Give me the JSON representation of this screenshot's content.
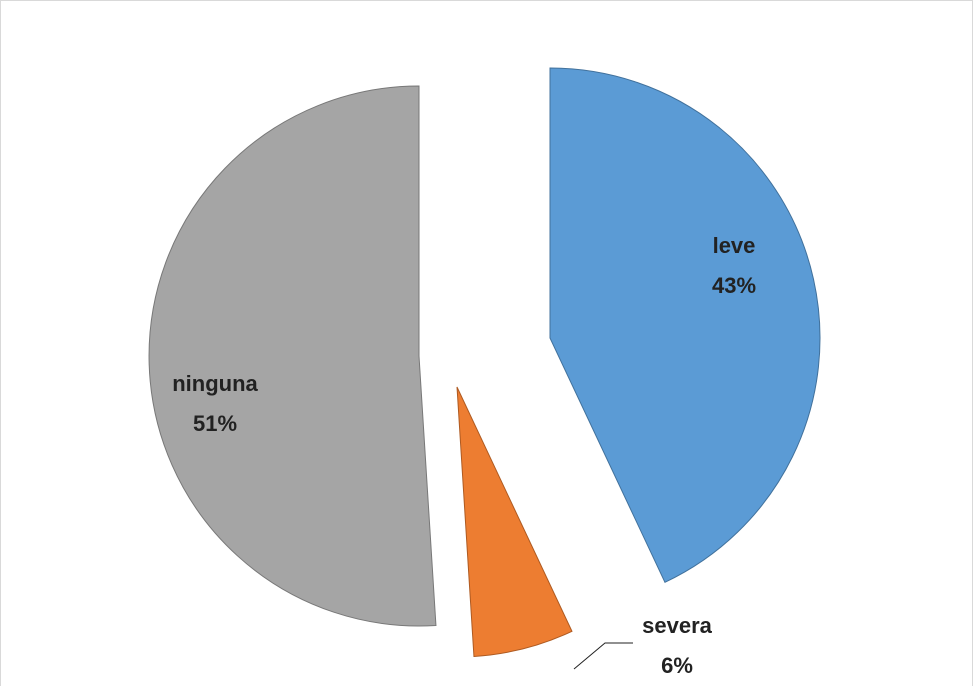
{
  "chart_data": {
    "type": "pie",
    "title": "",
    "exploded": true,
    "legend": "none",
    "slices": [
      {
        "name": "leve",
        "value": 43,
        "label": "43%",
        "color": "#5b9bd5",
        "stroke": "#41719c"
      },
      {
        "name": "severa",
        "value": 6,
        "label": "6%",
        "color": "#ed7d31",
        "stroke": "#ae5a21"
      },
      {
        "name": "ninguna",
        "value": 51,
        "label": "51%",
        "color": "#a5a5a5",
        "stroke": "#787878"
      }
    ]
  }
}
